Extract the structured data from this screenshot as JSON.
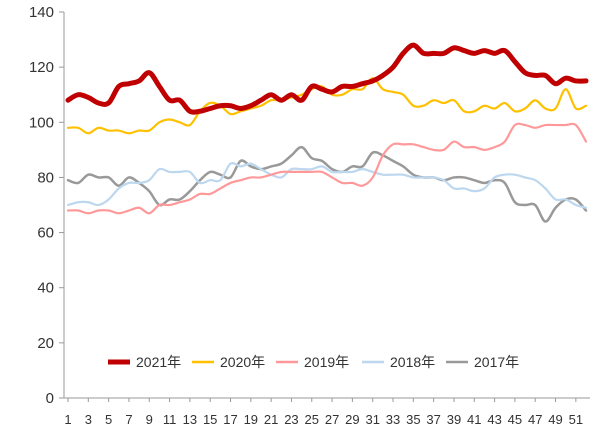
{
  "chart_data": {
    "type": "line",
    "xlabel": "",
    "ylabel": "",
    "ylim": [
      0,
      140
    ],
    "yticks": [
      0,
      20,
      40,
      60,
      80,
      100,
      120,
      140
    ],
    "xlim": [
      1,
      52
    ],
    "xtick_labels": [
      "1",
      "3",
      "5",
      "7",
      "9",
      "11",
      "13",
      "15",
      "17",
      "19",
      "21",
      "23",
      "25",
      "27",
      "29",
      "31",
      "33",
      "35",
      "37",
      "39",
      "41",
      "43",
      "45",
      "47",
      "49",
      "51"
    ],
    "grid": false,
    "legend_position": "bottom-center",
    "series": [
      {
        "name": "2021年",
        "color": "#C00000",
        "values": [
          108,
          110,
          109,
          107,
          107,
          113,
          114,
          115,
          118,
          113,
          108,
          108,
          104,
          104,
          105,
          106,
          106,
          105,
          106,
          108,
          110,
          108,
          110,
          108,
          113,
          112,
          111,
          113,
          113,
          114,
          115,
          117,
          120,
          125,
          128,
          125,
          125,
          125,
          127,
          126,
          125,
          126,
          125,
          126,
          122,
          118,
          117,
          117,
          114,
          116,
          115,
          115
        ]
      },
      {
        "name": "2020年",
        "color": "#FFC000",
        "values": [
          98,
          98,
          96,
          98,
          97,
          97,
          96,
          97,
          97,
          100,
          101,
          100,
          99,
          104,
          107,
          106,
          103,
          104,
          105,
          106,
          108,
          108,
          109,
          110,
          112,
          113,
          110,
          110,
          112,
          112,
          116,
          112,
          111,
          110,
          106,
          106,
          108,
          107,
          108,
          104,
          104,
          106,
          105,
          107,
          104,
          105,
          108,
          105,
          105,
          112,
          105,
          106
        ]
      },
      {
        "name": "2019年",
        "color": "#FF9999",
        "values": [
          68,
          68,
          67,
          68,
          68,
          67,
          68,
          69,
          67,
          70,
          70,
          71,
          72,
          74,
          74,
          76,
          78,
          79,
          80,
          80,
          81,
          82,
          82,
          82,
          82,
          82,
          80,
          78,
          78,
          77,
          80,
          88,
          92,
          92,
          92,
          91,
          90,
          90,
          93,
          91,
          91,
          90,
          91,
          93,
          99,
          99,
          98,
          99,
          99,
          99,
          99,
          93
        ]
      },
      {
        "name": "2018年",
        "color": "#BDD7EE",
        "values": [
          70,
          71,
          71,
          70,
          72,
          76,
          78,
          78,
          79,
          83,
          82,
          82,
          82,
          78,
          79,
          79,
          85,
          84,
          85,
          83,
          81,
          80,
          83,
          83,
          83,
          84,
          82,
          82,
          82,
          83,
          82,
          81,
          81,
          81,
          80,
          80,
          80,
          79,
          76,
          76,
          75,
          76,
          80,
          81,
          81,
          80,
          79,
          76,
          72,
          72,
          70,
          69
        ]
      },
      {
        "name": "2017年",
        "color": "#999999",
        "values": [
          79,
          78,
          81,
          80,
          80,
          77,
          80,
          78,
          75,
          70,
          72,
          72,
          75,
          79,
          82,
          81,
          80,
          86,
          84,
          83,
          84,
          85,
          88,
          91,
          87,
          86,
          83,
          82,
          84,
          84,
          89,
          88,
          86,
          84,
          81,
          80,
          80,
          79,
          80,
          80,
          79,
          78,
          79,
          78,
          71,
          70,
          70,
          64,
          69,
          72,
          72,
          68
        ]
      }
    ]
  }
}
